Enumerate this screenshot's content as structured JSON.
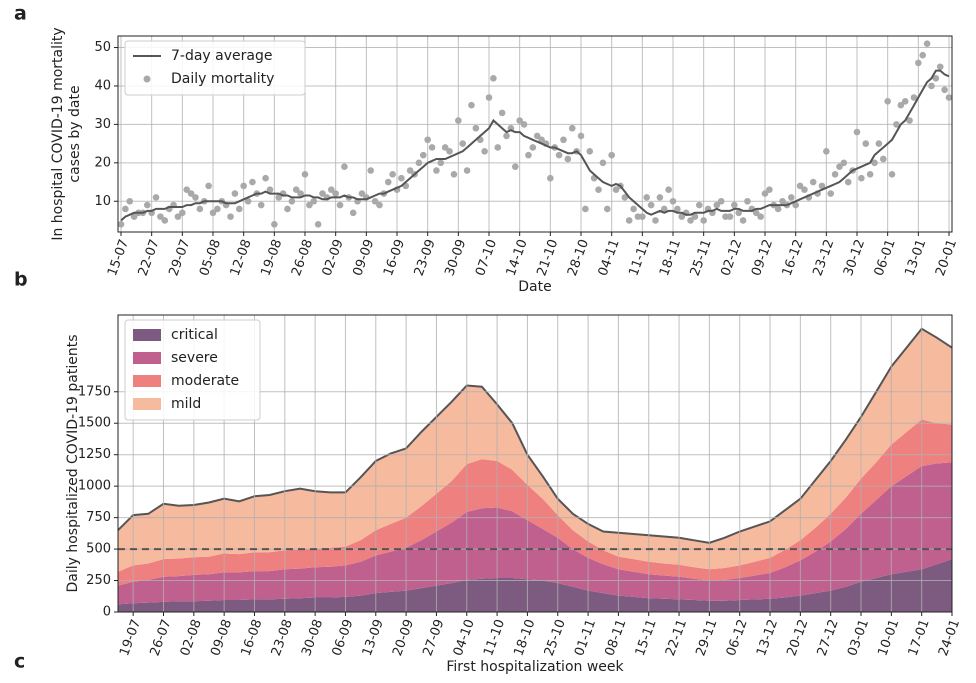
{
  "panel_labels": [
    "a",
    "b",
    "c"
  ],
  "chart_data": [
    {
      "type": "line",
      "grid": true,
      "legend": "upper left",
      "xlabel": "Date",
      "ylabel": [
        "In hospital COVID-19 mortality",
        "cases by date"
      ],
      "ylim": [
        2,
        53
      ],
      "yticks": [
        10,
        20,
        30,
        40,
        50
      ],
      "x": [
        "15-07",
        null,
        null,
        null,
        null,
        null,
        null,
        "22-07",
        null,
        null,
        null,
        null,
        null,
        null,
        "29-07",
        null,
        null,
        null,
        null,
        null,
        null,
        "05-08",
        null,
        null,
        null,
        null,
        null,
        null,
        "12-08",
        null,
        null,
        null,
        null,
        null,
        null,
        "19-08",
        null,
        null,
        null,
        null,
        null,
        null,
        "26-08",
        null,
        null,
        null,
        null,
        null,
        null,
        "02-09",
        null,
        null,
        null,
        null,
        null,
        null,
        "09-09",
        null,
        null,
        null,
        null,
        null,
        null,
        "16-09",
        null,
        null,
        null,
        null,
        null,
        null,
        "23-09",
        null,
        null,
        null,
        null,
        null,
        null,
        "30-09",
        null,
        null,
        null,
        null,
        null,
        null,
        "07-10",
        null,
        null,
        null,
        null,
        null,
        null,
        "14-10",
        null,
        null,
        null,
        null,
        null,
        null,
        "21-10",
        null,
        null,
        null,
        null,
        null,
        null,
        "28-10",
        null,
        null,
        null,
        null,
        null,
        null,
        "04-11",
        null,
        null,
        null,
        null,
        null,
        null,
        "11-11",
        null,
        null,
        null,
        null,
        null,
        null,
        "18-11",
        null,
        null,
        null,
        null,
        null,
        null,
        "25-11",
        null,
        null,
        null,
        null,
        null,
        null,
        "02-12",
        null,
        null,
        null,
        null,
        null,
        null,
        "09-12",
        null,
        null,
        null,
        null,
        null,
        null,
        "16-12",
        null,
        null,
        null,
        null,
        null,
        null,
        "23-12",
        null,
        null,
        null,
        null,
        null,
        null,
        "30-12",
        null,
        null,
        null,
        null,
        null,
        null,
        "06-01",
        null,
        null,
        null,
        null,
        null,
        null,
        "13-01",
        null,
        null,
        null,
        null,
        null,
        null,
        "20-01"
      ],
      "series": [
        {
          "name": "7-day average",
          "color": "#555555",
          "style": "line",
          "values": [
            5,
            6,
            6.5,
            7,
            7,
            7,
            7.5,
            7.5,
            8,
            8,
            8,
            8.5,
            8.5,
            8.5,
            8.5,
            9,
            9,
            9.5,
            9.5,
            10,
            10,
            10,
            10,
            10,
            9.5,
            9.5,
            9.5,
            10,
            10.5,
            11,
            11.5,
            12,
            12,
            12.5,
            12,
            12,
            12,
            11.5,
            11.5,
            11,
            11,
            11,
            11.5,
            11.5,
            11,
            11,
            10.5,
            10.5,
            11,
            11,
            11,
            11.5,
            11,
            11,
            10.5,
            10.5,
            10.5,
            11,
            11.5,
            12,
            12,
            12.5,
            13,
            13.5,
            14,
            15,
            16,
            17,
            18,
            19,
            20,
            20.5,
            21,
            21,
            21,
            21.5,
            22,
            22.5,
            23,
            24,
            25,
            26,
            27,
            28,
            29,
            31,
            30,
            29,
            28,
            28.5,
            28,
            28,
            27,
            26.5,
            26,
            25.5,
            25,
            24.5,
            24,
            24,
            23.5,
            23,
            22.5,
            22.5,
            23,
            22,
            20,
            18,
            17,
            16,
            15,
            14.5,
            14,
            14.5,
            14,
            12.5,
            11,
            10,
            9,
            8,
            7,
            6.5,
            7,
            7.5,
            7,
            7.5,
            7.5,
            7,
            7,
            6.5,
            6.5,
            7,
            7,
            7,
            7.5,
            7.5,
            8,
            7.5,
            7.5,
            7.5,
            8,
            8,
            7.5,
            7.5,
            7.5,
            8,
            8,
            8.5,
            9,
            9,
            9,
            9,
            9,
            9.5,
            10,
            10.5,
            11,
            11.5,
            12,
            12.5,
            13,
            13.5,
            14,
            14.5,
            15,
            16,
            17,
            18,
            18.5,
            19,
            19.5,
            20,
            22,
            23,
            24,
            25,
            26,
            28,
            30,
            31,
            33,
            35,
            37,
            39,
            41,
            42,
            44,
            44,
            43,
            42.5
          ]
        },
        {
          "name": "Daily mortality",
          "color": "#a9a9a9",
          "style": "scatter",
          "values": [
            4,
            8,
            10,
            6,
            7,
            7,
            9,
            7,
            11,
            6,
            5,
            8,
            9,
            6,
            7,
            13,
            12,
            11,
            8,
            10,
            14,
            7,
            8,
            10,
            9,
            6,
            12,
            8,
            14,
            10,
            15,
            12,
            9,
            16,
            13,
            4,
            11,
            12,
            8,
            10,
            13,
            12,
            17,
            9,
            10,
            4,
            12,
            11,
            13,
            12,
            9,
            19,
            11,
            7,
            10,
            12,
            11,
            18,
            10,
            9,
            12,
            15,
            17,
            13,
            16,
            14,
            18,
            17,
            20,
            22,
            26,
            24,
            18,
            20,
            24,
            23,
            17,
            31,
            25,
            18,
            35,
            29,
            26,
            23,
            37,
            42,
            24,
            33,
            27,
            29,
            19,
            31,
            30,
            22,
            24,
            27,
            26,
            25,
            16,
            24,
            22,
            26,
            21,
            29,
            23,
            27,
            8,
            23,
            16,
            13,
            20,
            8,
            22,
            13,
            14,
            11,
            5,
            8,
            6,
            6,
            11,
            9,
            5,
            11,
            8,
            13,
            10,
            8,
            6,
            7,
            5,
            6,
            9,
            5,
            8,
            7,
            9,
            10,
            6,
            6,
            9,
            7,
            5,
            10,
            8,
            7,
            6,
            12,
            13,
            9,
            8,
            10,
            9,
            11,
            9,
            14,
            13,
            11,
            15,
            12,
            14,
            23,
            12,
            17,
            19,
            20,
            15,
            18,
            28,
            16,
            25,
            17,
            20,
            25,
            21,
            36,
            17,
            30,
            35,
            36,
            31,
            37,
            46,
            48,
            51,
            40,
            42,
            45,
            39,
            37
          ]
        }
      ]
    },
    {
      "type": "area",
      "stacked": true,
      "grid": true,
      "legend": "upper left",
      "xlabel": "First hospitalization week",
      "ylabel": [
        "Daily hospitalized COVID-19 patients"
      ],
      "ylim": [
        0,
        2360
      ],
      "yticks": [
        0,
        250,
        500,
        750,
        1000,
        1250,
        1500,
        1750
      ],
      "hline": 500,
      "x": [
        null,
        "19-07",
        null,
        "26-07",
        null,
        "02-08",
        null,
        "09-08",
        null,
        "16-08",
        null,
        "23-08",
        null,
        "30-08",
        null,
        "06-09",
        null,
        "13-09",
        null,
        "20-09",
        null,
        "27-09",
        null,
        "04-10",
        null,
        "11-10",
        null,
        "18-10",
        null,
        "25-10",
        null,
        "01-11",
        null,
        "08-11",
        null,
        "15-11",
        null,
        "22-11",
        null,
        "29-11",
        null,
        "06-12",
        null,
        "13-12",
        null,
        "20-12",
        null,
        "27-12",
        null,
        "03-01",
        null,
        "10-01",
        null,
        "17-01",
        null,
        "24-01"
      ],
      "series": [
        {
          "name": "critical",
          "color": "#7d5a80",
          "values": [
            60,
            70,
            75,
            80,
            85,
            85,
            90,
            95,
            95,
            100,
            100,
            105,
            110,
            115,
            115,
            120,
            130,
            150,
            160,
            170,
            190,
            210,
            230,
            255,
            265,
            270,
            270,
            260,
            250,
            230,
            200,
            170,
            150,
            130,
            120,
            110,
            105,
            100,
            95,
            90,
            90,
            95,
            100,
            105,
            115,
            130,
            150,
            170,
            200,
            240,
            270,
            300,
            320,
            340,
            380,
            420
          ]
        },
        {
          "name": "severe",
          "color": "#c0608f",
          "values": [
            150,
            170,
            180,
            200,
            200,
            210,
            210,
            220,
            220,
            225,
            225,
            235,
            235,
            240,
            245,
            250,
            270,
            300,
            320,
            340,
            380,
            430,
            480,
            540,
            560,
            560,
            530,
            470,
            410,
            360,
            300,
            260,
            230,
            210,
            200,
            190,
            185,
            180,
            170,
            160,
            165,
            175,
            190,
            205,
            240,
            280,
            330,
            390,
            460,
            540,
            620,
            700,
            760,
            820,
            800,
            770
          ]
        },
        {
          "name": "moderate",
          "color": "#ee8080",
          "values": [
            110,
            130,
            130,
            140,
            140,
            140,
            140,
            150,
            145,
            150,
            150,
            150,
            150,
            150,
            150,
            150,
            170,
            200,
            220,
            240,
            270,
            300,
            330,
            380,
            390,
            370,
            330,
            280,
            240,
            180,
            150,
            130,
            110,
            100,
            100,
            100,
            95,
            95,
            90,
            90,
            95,
            100,
            110,
            120,
            140,
            160,
            190,
            220,
            250,
            280,
            300,
            330,
            350,
            370,
            320,
            300
          ]
        },
        {
          "name": "mild",
          "color": "#f6ba9e",
          "values": [
            330,
            400,
            395,
            440,
            420,
            415,
            430,
            435,
            420,
            445,
            455,
            470,
            485,
            455,
            440,
            430,
            500,
            550,
            560,
            550,
            590,
            610,
            630,
            625,
            575,
            450,
            370,
            240,
            180,
            130,
            130,
            140,
            150,
            190,
            200,
            210,
            215,
            215,
            215,
            210,
            240,
            270,
            280,
            290,
            315,
            330,
            380,
            420,
            460,
            490,
            560,
            620,
            670,
            720,
            680,
            610
          ]
        }
      ]
    }
  ]
}
